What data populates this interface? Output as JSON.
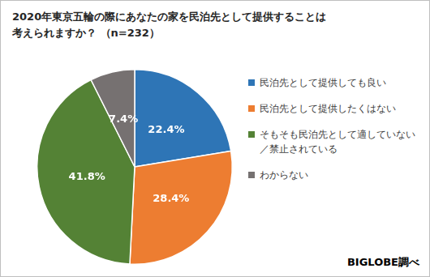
{
  "chart_data": {
    "type": "pie",
    "title": [
      "2020年東京五輪の際にあなたの家を民泊先として提供することは",
      "考えられますか？ （n=232）"
    ],
    "categories": [
      "民泊先として提供しても良い",
      "民泊先として提供したくはない",
      "そもそも民泊先として適していない／禁止されている",
      "わからない"
    ],
    "values": [
      22.4,
      28.4,
      41.8,
      7.4
    ],
    "value_labels": [
      "22.4%",
      "28.4%",
      "41.8%",
      "7.4%"
    ],
    "colors": [
      "#2e75b6",
      "#ed7d31",
      "#548235",
      "#767171"
    ],
    "data_labels": true,
    "legend": "right",
    "annotations": [
      "BIGLOBE調べ"
    ]
  }
}
